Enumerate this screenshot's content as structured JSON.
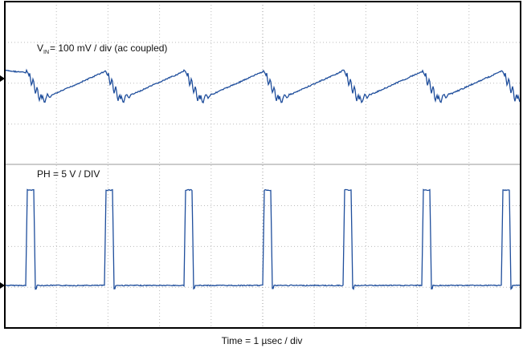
{
  "labels": {
    "vin_symbol": "V",
    "vin_subscript": "IN",
    "vin_text": "= 100 mV / div (ac coupled)",
    "ph": "PH = 5 V / DIV"
  },
  "footer": "Time = 1 µsec / div"
}
